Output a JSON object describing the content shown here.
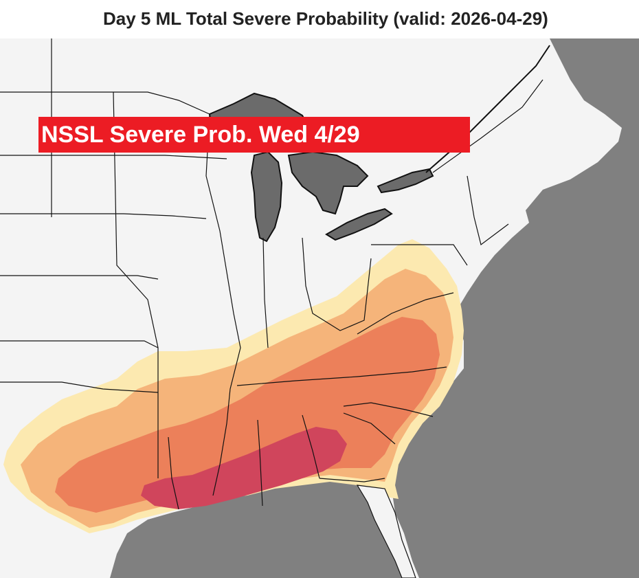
{
  "title": "Day 5 ML Total Severe Probability (valid: 2026-04-29)",
  "badge": {
    "text": "NSSL Severe Prob. Wed 4/29",
    "color": "#ec1c24"
  },
  "colors": {
    "land": "#f4f4f4",
    "water": "#808080",
    "border": "#111111",
    "prob_levels": [
      "#fce9b0",
      "#f5b47a",
      "#ec805a",
      "#d0455c"
    ]
  },
  "icons": {
    "map": "map-icon"
  }
}
